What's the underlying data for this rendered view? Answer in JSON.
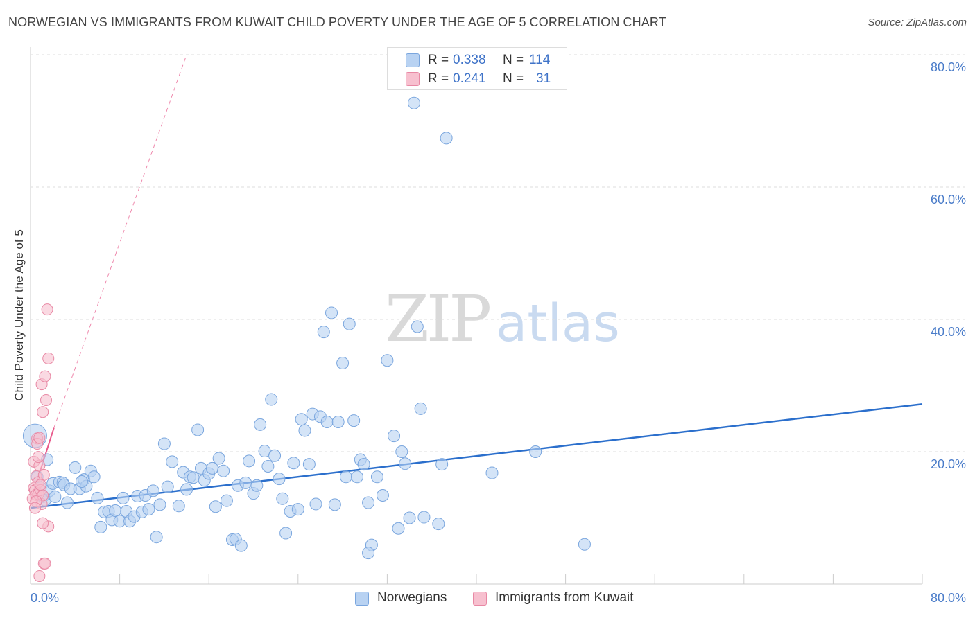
{
  "title": "NORWEGIAN VS IMMIGRANTS FROM KUWAIT CHILD POVERTY UNDER THE AGE OF 5 CORRELATION CHART",
  "source": "Source: ZipAtlas.com",
  "watermark": {
    "zip": "ZIP",
    "atlas": "atlas"
  },
  "colors": {
    "blue_fill": "#b8d2f2",
    "blue_stroke": "#7aa6de",
    "blue_line": "#2b6fcc",
    "pink_fill": "#f7c0cf",
    "pink_stroke": "#e888a4",
    "pink_line": "#e8578a",
    "grid": "#dddddd",
    "tick_label": "#4a7cc9"
  },
  "legend_stats": [
    {
      "r_label": "R =",
      "r_value": "0.338",
      "n_label": "N =",
      "n_value": "114"
    },
    {
      "r_label": "R =",
      "r_value": "0.241",
      "n_label": "N =",
      "n_value": "31"
    }
  ],
  "chart_data": {
    "type": "scatter",
    "title": "NORWEGIAN VS IMMIGRANTS FROM KUWAIT CHILD POVERTY UNDER THE AGE OF 5 CORRELATION CHART",
    "xlabel": "",
    "ylabel": "Child Poverty Under the Age of 5",
    "xlim": [
      0,
      80
    ],
    "ylim": [
      0,
      80
    ],
    "x_tick_labels": [
      "0.0%",
      "80.0%"
    ],
    "y_ticks": [
      {
        "value": 20,
        "label": "20.0%"
      },
      {
        "value": 40,
        "label": "40.0%"
      },
      {
        "value": 60,
        "label": "60.0%"
      },
      {
        "value": 80,
        "label": "80.0%"
      }
    ],
    "grid": true,
    "legend_position": "bottom",
    "series": [
      {
        "name": "Norwegians",
        "points": [
          [
            0.4,
            22.4
          ],
          [
            0.6,
            16.2
          ],
          [
            0.9,
            14.6
          ],
          [
            1.1,
            13.2
          ],
          [
            1.3,
            12.7
          ],
          [
            1.7,
            14.1
          ],
          [
            2.0,
            15.2
          ],
          [
            2.2,
            13.2
          ],
          [
            2.6,
            15.4
          ],
          [
            2.9,
            15.3
          ],
          [
            3.0,
            15.0
          ],
          [
            3.3,
            12.3
          ],
          [
            3.6,
            14.4
          ],
          [
            4.0,
            17.6
          ],
          [
            4.4,
            14.4
          ],
          [
            4.8,
            15.8
          ],
          [
            5.0,
            14.8
          ],
          [
            5.4,
            17.1
          ],
          [
            5.7,
            16.2
          ],
          [
            6.0,
            13.0
          ],
          [
            6.3,
            8.6
          ],
          [
            6.6,
            10.9
          ],
          [
            7.0,
            11.0
          ],
          [
            7.3,
            9.7
          ],
          [
            7.6,
            11.1
          ],
          [
            8.0,
            9.5
          ],
          [
            8.3,
            13.0
          ],
          [
            8.6,
            11.0
          ],
          [
            8.9,
            9.5
          ],
          [
            9.3,
            10.2
          ],
          [
            9.6,
            13.3
          ],
          [
            10.0,
            10.9
          ],
          [
            10.3,
            13.4
          ],
          [
            10.6,
            11.3
          ],
          [
            11.0,
            14.1
          ],
          [
            11.3,
            7.1
          ],
          [
            11.6,
            12.0
          ],
          [
            12.0,
            21.2
          ],
          [
            12.3,
            14.7
          ],
          [
            12.7,
            18.5
          ],
          [
            13.3,
            11.8
          ],
          [
            13.7,
            16.9
          ],
          [
            14.0,
            14.3
          ],
          [
            14.3,
            16.2
          ],
          [
            14.6,
            16.1
          ],
          [
            15.0,
            23.3
          ],
          [
            15.3,
            17.5
          ],
          [
            15.6,
            15.7
          ],
          [
            16.0,
            16.7
          ],
          [
            16.3,
            17.5
          ],
          [
            16.6,
            11.7
          ],
          [
            16.9,
            19.0
          ],
          [
            17.3,
            17.1
          ],
          [
            17.6,
            12.6
          ],
          [
            18.1,
            6.7
          ],
          [
            18.4,
            6.8
          ],
          [
            18.6,
            14.9
          ],
          [
            18.9,
            5.8
          ],
          [
            19.3,
            15.3
          ],
          [
            19.6,
            18.6
          ],
          [
            20.0,
            13.7
          ],
          [
            20.3,
            14.9
          ],
          [
            20.6,
            24.1
          ],
          [
            21.0,
            20.1
          ],
          [
            21.3,
            17.8
          ],
          [
            21.6,
            27.9
          ],
          [
            21.9,
            19.4
          ],
          [
            22.3,
            15.9
          ],
          [
            22.6,
            12.9
          ],
          [
            22.9,
            7.7
          ],
          [
            23.3,
            11.0
          ],
          [
            23.6,
            18.3
          ],
          [
            24.0,
            11.3
          ],
          [
            24.3,
            24.9
          ],
          [
            24.6,
            23.2
          ],
          [
            25.0,
            18.1
          ],
          [
            25.3,
            25.7
          ],
          [
            25.6,
            12.1
          ],
          [
            26.0,
            25.3
          ],
          [
            26.3,
            38.1
          ],
          [
            26.6,
            24.5
          ],
          [
            27.0,
            41.0
          ],
          [
            27.3,
            12.0
          ],
          [
            27.6,
            24.5
          ],
          [
            28.0,
            33.4
          ],
          [
            28.3,
            16.2
          ],
          [
            28.6,
            39.3
          ],
          [
            29.0,
            24.7
          ],
          [
            29.3,
            16.2
          ],
          [
            29.6,
            18.8
          ],
          [
            29.9,
            18.1
          ],
          [
            30.3,
            12.3
          ],
          [
            30.6,
            5.9
          ],
          [
            30.3,
            4.7
          ],
          [
            31.1,
            16.2
          ],
          [
            31.6,
            13.4
          ],
          [
            32.0,
            33.8
          ],
          [
            32.6,
            22.4
          ],
          [
            33.0,
            8.4
          ],
          [
            33.3,
            20.0
          ],
          [
            33.6,
            18.2
          ],
          [
            34.0,
            10.0
          ],
          [
            34.4,
            72.7
          ],
          [
            34.7,
            38.9
          ],
          [
            35.0,
            26.5
          ],
          [
            35.3,
            10.1
          ],
          [
            36.6,
            9.1
          ],
          [
            36.9,
            18.1
          ],
          [
            37.3,
            67.4
          ],
          [
            41.4,
            16.8
          ],
          [
            45.3,
            20.0
          ],
          [
            49.7,
            6.0
          ],
          [
            1.5,
            18.8
          ],
          [
            4.6,
            15.5
          ]
        ]
      },
      {
        "name": "Immigrants from Kuwait",
        "points": [
          [
            0.2,
            12.9
          ],
          [
            0.3,
            14.5
          ],
          [
            0.3,
            18.5
          ],
          [
            0.4,
            14.2
          ],
          [
            0.5,
            13.5
          ],
          [
            0.5,
            16.3
          ],
          [
            0.6,
            22.0
          ],
          [
            0.6,
            21.2
          ],
          [
            0.7,
            15.4
          ],
          [
            0.7,
            13.6
          ],
          [
            0.8,
            22.1
          ],
          [
            0.8,
            17.9
          ],
          [
            0.9,
            14.2
          ],
          [
            1.0,
            30.2
          ],
          [
            1.0,
            12.1
          ],
          [
            1.1,
            26.0
          ],
          [
            1.1,
            13.4
          ],
          [
            1.2,
            16.5
          ],
          [
            1.3,
            31.4
          ],
          [
            1.4,
            27.8
          ],
          [
            1.5,
            41.5
          ],
          [
            1.6,
            34.1
          ],
          [
            1.6,
            8.7
          ],
          [
            1.1,
            9.2
          ],
          [
            1.2,
            3.1
          ],
          [
            1.3,
            3.1
          ],
          [
            0.8,
            1.2
          ],
          [
            0.5,
            12.5
          ],
          [
            0.4,
            11.5
          ],
          [
            0.9,
            15.0
          ],
          [
            0.7,
            19.2
          ]
        ]
      }
    ],
    "trend_lines": [
      {
        "series": "Norwegians",
        "x": [
          0,
          80
        ],
        "y": [
          11.5,
          27.2
        ],
        "style": "solid"
      },
      {
        "series": "Immigrants from Kuwait",
        "x": [
          0,
          2.1
        ],
        "y": [
          12.5,
          23.6
        ],
        "style": "solid"
      },
      {
        "series": "Immigrants from Kuwait",
        "x": [
          2.1,
          14.0
        ],
        "y": [
          23.6,
          80.0
        ],
        "style": "dashed"
      }
    ]
  }
}
